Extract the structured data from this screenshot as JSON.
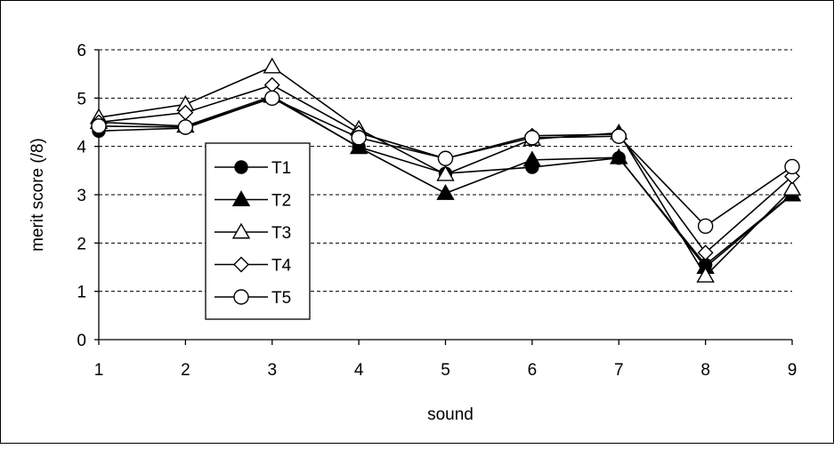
{
  "chart_data": {
    "type": "line",
    "xlabel": "sound",
    "ylabel": "merit score (/8)",
    "categories": [
      "1",
      "2",
      "3",
      "4",
      "5",
      "6",
      "7",
      "8",
      "9"
    ],
    "ylim": [
      0,
      6
    ],
    "yticks": [
      "0",
      "1",
      "2",
      "3",
      "4",
      "5",
      "6"
    ],
    "grid": "horizontal dashed",
    "legend_position": "left-center",
    "series": [
      {
        "name": "T1",
        "marker": "filled-circle",
        "values": [
          4.32,
          4.38,
          5.01,
          3.99,
          3.44,
          3.57,
          3.76,
          1.55,
          3.01
        ]
      },
      {
        "name": "T2",
        "marker": "filled-triangle",
        "values": [
          4.5,
          4.42,
          5.04,
          3.98,
          3.03,
          3.72,
          3.77,
          1.5,
          3.0
        ]
      },
      {
        "name": "T3",
        "marker": "open-triangle",
        "values": [
          4.6,
          4.87,
          5.65,
          4.36,
          3.42,
          4.15,
          4.28,
          1.32,
          3.12
        ]
      },
      {
        "name": "T4",
        "marker": "open-diamond",
        "values": [
          4.5,
          4.7,
          5.27,
          4.28,
          3.75,
          4.22,
          4.25,
          1.8,
          3.38
        ]
      },
      {
        "name": "T5",
        "marker": "open-circle",
        "values": [
          4.42,
          4.4,
          5.0,
          4.18,
          3.75,
          4.18,
          4.21,
          2.35,
          3.58
        ]
      }
    ]
  }
}
